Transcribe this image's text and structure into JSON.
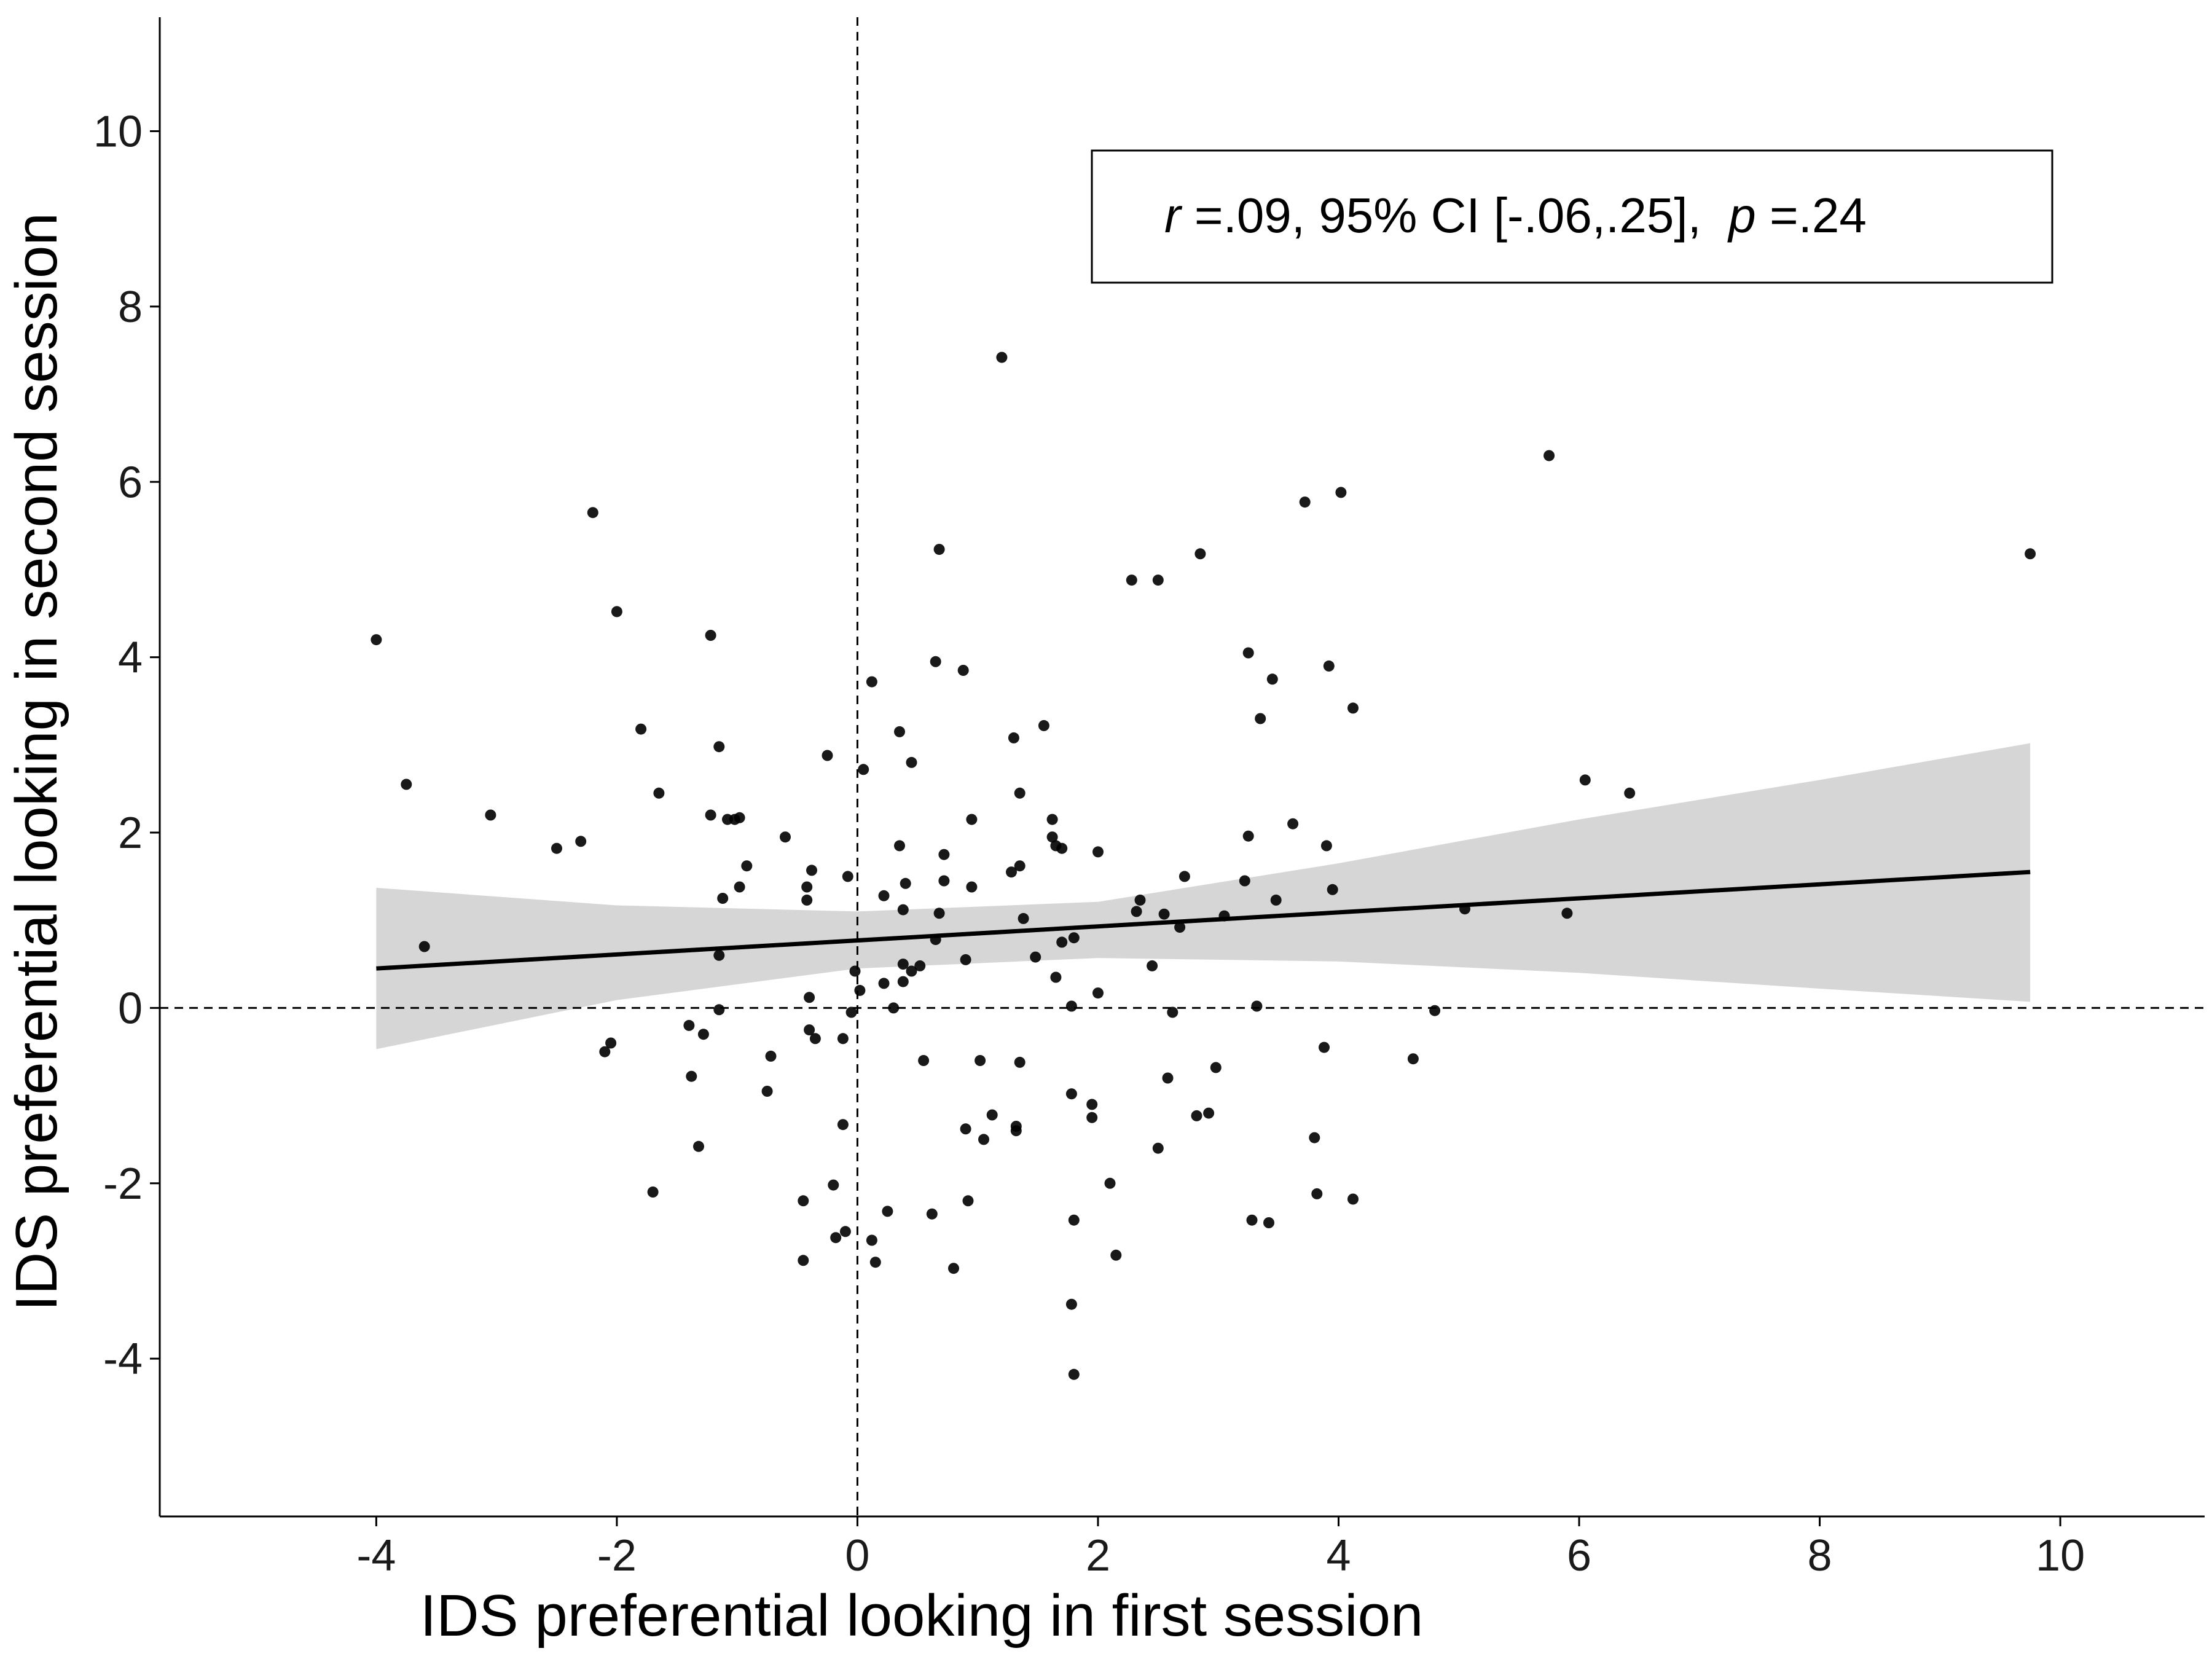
{
  "chart_data": {
    "type": "scatter",
    "xlabel": "IDS preferential looking in first session",
    "ylabel": "IDS preferential looking in second session",
    "xlim": [
      -5.8,
      11.2
    ],
    "ylim": [
      -5.8,
      11.3
    ],
    "x_ticks": [
      -4,
      -2,
      0,
      2,
      4,
      6,
      8,
      10
    ],
    "y_ticks": [
      -4,
      -2,
      0,
      2,
      4,
      6,
      8,
      10
    ],
    "x_tick_labels": [
      "-4",
      "-2",
      "0",
      "2",
      "4",
      "6",
      "8",
      "10"
    ],
    "y_tick_labels": [
      "-4",
      "-2",
      "0",
      "2",
      "4",
      "6",
      "8",
      "10"
    ],
    "grid": false,
    "reference_lines": {
      "x": 0,
      "y": 0,
      "style": "dashed"
    },
    "annotation": {
      "r_symbol": "r",
      "r_text": " =.09, 95% CI [-.06,.25],  ",
      "p_symbol": "p",
      "p_text": " =.24"
    },
    "fit": {
      "x_range": [
        -4,
        9.75
      ],
      "intercept": 0.77,
      "slope": 0.08,
      "ci_points": [
        {
          "x": -4,
          "lower": -0.47,
          "upper": 1.37
        },
        {
          "x": -2,
          "lower": 0.09,
          "upper": 1.17
        },
        {
          "x": 0,
          "lower": 0.45,
          "upper": 1.1
        },
        {
          "x": 2,
          "lower": 0.57,
          "upper": 1.21
        },
        {
          "x": 4,
          "lower": 0.53,
          "upper": 1.65
        },
        {
          "x": 6,
          "lower": 0.4,
          "upper": 2.15
        },
        {
          "x": 8,
          "lower": 0.22,
          "upper": 2.6
        },
        {
          "x": 9.75,
          "lower": 0.07,
          "upper": 3.02
        }
      ]
    },
    "points": [
      [
        -4.0,
        4.2
      ],
      [
        -3.75,
        2.55
      ],
      [
        -3.6,
        0.7
      ],
      [
        -3.05,
        2.2
      ],
      [
        -2.5,
        1.82
      ],
      [
        -2.3,
        1.9
      ],
      [
        -2.2,
        5.65
      ],
      [
        -2.1,
        -0.5
      ],
      [
        -2.05,
        -0.4
      ],
      [
        -2.0,
        4.52
      ],
      [
        -1.8,
        3.18
      ],
      [
        -1.7,
        -2.1
      ],
      [
        -1.65,
        2.45
      ],
      [
        -1.4,
        -0.2
      ],
      [
        -1.38,
        -0.78
      ],
      [
        -1.32,
        -1.58
      ],
      [
        -1.28,
        -0.3
      ],
      [
        -1.22,
        4.25
      ],
      [
        -1.22,
        2.2
      ],
      [
        -1.15,
        2.98
      ],
      [
        -1.15,
        0.6
      ],
      [
        -1.15,
        -0.02
      ],
      [
        -1.12,
        1.25
      ],
      [
        -1.08,
        2.15
      ],
      [
        -1.02,
        2.15
      ],
      [
        -0.98,
        2.17
      ],
      [
        -0.98,
        1.38
      ],
      [
        -0.92,
        1.62
      ],
      [
        -0.75,
        -0.95
      ],
      [
        -0.72,
        -0.55
      ],
      [
        -0.6,
        1.95
      ],
      [
        -0.45,
        -2.2
      ],
      [
        -0.45,
        -2.88
      ],
      [
        -0.42,
        1.38
      ],
      [
        -0.42,
        1.23
      ],
      [
        -0.4,
        -0.25
      ],
      [
        -0.4,
        0.12
      ],
      [
        -0.38,
        1.57
      ],
      [
        -0.35,
        -0.35
      ],
      [
        -0.25,
        2.88
      ],
      [
        -0.2,
        -2.02
      ],
      [
        -0.18,
        -2.62
      ],
      [
        -0.12,
        -0.35
      ],
      [
        -0.12,
        -1.33
      ],
      [
        -0.1,
        -2.55
      ],
      [
        -0.08,
        1.5
      ],
      [
        -0.05,
        -0.05
      ],
      [
        -0.02,
        0.42
      ],
      [
        0.02,
        0.2
      ],
      [
        0.05,
        2.72
      ],
      [
        0.12,
        3.72
      ],
      [
        0.12,
        -2.65
      ],
      [
        0.15,
        -2.9
      ],
      [
        0.22,
        1.28
      ],
      [
        0.22,
        0.28
      ],
      [
        0.25,
        -2.32
      ],
      [
        0.3,
        0.0
      ],
      [
        0.35,
        1.85
      ],
      [
        0.35,
        3.15
      ],
      [
        0.38,
        0.3
      ],
      [
        0.38,
        1.12
      ],
      [
        0.38,
        0.5
      ],
      [
        0.4,
        1.42
      ],
      [
        0.45,
        0.42
      ],
      [
        0.45,
        2.8
      ],
      [
        0.52,
        0.48
      ],
      [
        0.55,
        -0.6
      ],
      [
        0.62,
        -2.35
      ],
      [
        0.65,
        0.78
      ],
      [
        0.65,
        3.95
      ],
      [
        0.68,
        1.08
      ],
      [
        0.68,
        5.23
      ],
      [
        0.72,
        1.75
      ],
      [
        0.72,
        1.45
      ],
      [
        0.8,
        -2.97
      ],
      [
        0.88,
        3.85
      ],
      [
        0.9,
        0.55
      ],
      [
        0.9,
        -1.38
      ],
      [
        0.92,
        -2.2
      ],
      [
        0.95,
        2.15
      ],
      [
        0.95,
        1.38
      ],
      [
        1.02,
        -0.6
      ],
      [
        1.05,
        -1.5
      ],
      [
        1.12,
        -1.22
      ],
      [
        1.2,
        7.42
      ],
      [
        1.28,
        1.55
      ],
      [
        1.3,
        3.08
      ],
      [
        1.32,
        -1.35
      ],
      [
        1.32,
        -1.4
      ],
      [
        1.35,
        1.62
      ],
      [
        1.35,
        2.45
      ],
      [
        1.35,
        -0.62
      ],
      [
        1.38,
        1.02
      ],
      [
        1.48,
        0.58
      ],
      [
        1.55,
        3.22
      ],
      [
        1.62,
        1.95
      ],
      [
        1.62,
        2.15
      ],
      [
        1.65,
        1.85
      ],
      [
        1.65,
        0.35
      ],
      [
        1.7,
        1.82
      ],
      [
        1.7,
        0.75
      ],
      [
        1.78,
        0.02
      ],
      [
        1.78,
        -0.98
      ],
      [
        1.78,
        -3.38
      ],
      [
        1.8,
        0.8
      ],
      [
        1.8,
        -2.42
      ],
      [
        1.8,
        -4.18
      ],
      [
        1.95,
        -1.1
      ],
      [
        1.95,
        -1.25
      ],
      [
        2.0,
        1.78
      ],
      [
        2.0,
        0.17
      ],
      [
        2.1,
        -2.0
      ],
      [
        2.15,
        -2.82
      ],
      [
        2.28,
        4.88
      ],
      [
        2.32,
        1.1
      ],
      [
        2.35,
        1.23
      ],
      [
        2.45,
        0.48
      ],
      [
        2.5,
        4.88
      ],
      [
        2.5,
        -1.6
      ],
      [
        2.55,
        1.07
      ],
      [
        2.58,
        -0.8
      ],
      [
        2.62,
        -0.05
      ],
      [
        2.68,
        0.92
      ],
      [
        2.72,
        1.5
      ],
      [
        2.82,
        -1.23
      ],
      [
        2.85,
        5.18
      ],
      [
        2.92,
        -1.2
      ],
      [
        2.98,
        -0.68
      ],
      [
        3.05,
        1.05
      ],
      [
        3.22,
        1.45
      ],
      [
        3.25,
        1.96
      ],
      [
        3.25,
        4.05
      ],
      [
        3.28,
        -2.42
      ],
      [
        3.32,
        0.02
      ],
      [
        3.35,
        3.3
      ],
      [
        3.42,
        -2.45
      ],
      [
        3.45,
        3.75
      ],
      [
        3.48,
        1.23
      ],
      [
        3.62,
        2.1
      ],
      [
        3.72,
        5.77
      ],
      [
        3.8,
        -1.48
      ],
      [
        3.82,
        -2.12
      ],
      [
        3.88,
        -0.45
      ],
      [
        3.9,
        1.85
      ],
      [
        3.92,
        3.9
      ],
      [
        3.95,
        1.35
      ],
      [
        4.02,
        5.88
      ],
      [
        4.12,
        3.42
      ],
      [
        4.12,
        -2.18
      ],
      [
        4.62,
        -0.58
      ],
      [
        4.8,
        -0.03
      ],
      [
        5.05,
        1.13
      ],
      [
        5.75,
        6.3
      ],
      [
        5.9,
        1.08
      ],
      [
        6.05,
        2.6
      ],
      [
        6.42,
        2.45
      ],
      [
        9.75,
        5.18
      ]
    ]
  }
}
